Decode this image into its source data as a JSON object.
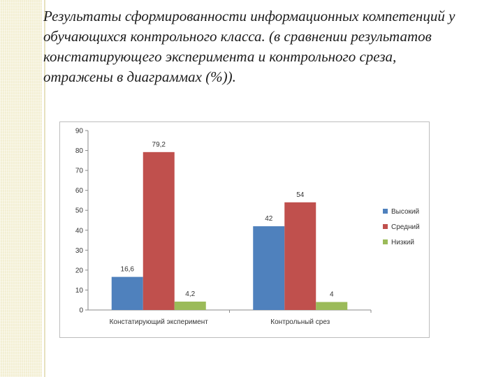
{
  "slide": {
    "heading": "Результаты сформированности информационных компетенций у обучающихся контрольного класса. (в сравнении результатов констатирующего эксперимента и контрольного среза, отражены в диаграммах (%))."
  },
  "chart_data": {
    "type": "bar",
    "categories": [
      "Констатирующий эксперимент",
      "Контрольный срез"
    ],
    "series": [
      {
        "name": "Высокий",
        "values": [
          16.6,
          42
        ],
        "labels": [
          "16,6",
          "42"
        ],
        "color": "#4f81bd"
      },
      {
        "name": "Средний",
        "values": [
          79.2,
          54
        ],
        "labels": [
          "79,2",
          "54"
        ],
        "color": "#c0504d"
      },
      {
        "name": "Низкий",
        "values": [
          4.2,
          4
        ],
        "labels": [
          "4,2",
          "4"
        ],
        "color": "#9bbb59"
      }
    ],
    "ylim": [
      0,
      90
    ],
    "yticks": [
      0,
      10,
      20,
      30,
      40,
      50,
      60,
      70,
      80,
      90
    ],
    "grid": false,
    "legend_position": "right"
  }
}
